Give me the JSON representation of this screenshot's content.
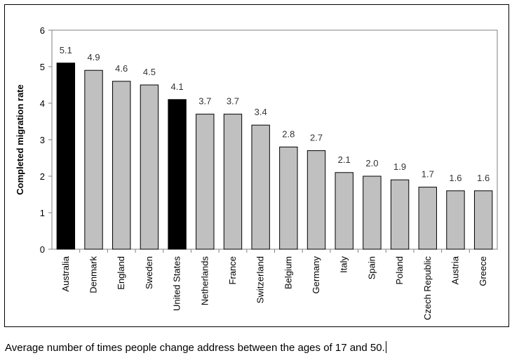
{
  "chart_data": {
    "type": "bar",
    "categories": [
      "Australia",
      "Denmark",
      "England",
      "Sweden",
      "United States",
      "Netherlands",
      "France",
      "Switzerland",
      "Belgium",
      "Germany",
      "Italy",
      "Spain",
      "Poland",
      "Czech Republic",
      "Austria",
      "Greece"
    ],
    "values": [
      5.1,
      4.9,
      4.6,
      4.5,
      4.1,
      3.7,
      3.7,
      3.4,
      2.8,
      2.7,
      2.1,
      2.0,
      1.9,
      1.7,
      1.6,
      1.6
    ],
    "value_labels": [
      "5.1",
      "4.9",
      "4.6",
      "4.5",
      "4.1",
      "3.7",
      "3.7",
      "3.4",
      "2.8",
      "2.7",
      "2.1",
      "2.0",
      "1.9",
      "1.7",
      "1.6",
      "1.6"
    ],
    "highlighted": [
      "Australia",
      "United States"
    ],
    "title": "",
    "xlabel": "",
    "ylabel": "Completed migration rate",
    "ylim": [
      0,
      6
    ],
    "yticks": [
      0,
      1,
      2,
      3,
      4,
      5,
      6
    ],
    "grid": false,
    "colors": {
      "bar": "#c0c0c0",
      "highlight": "#000000",
      "edge": "#000000",
      "axis": "#808080"
    }
  },
  "caption": "Average number of times people change address between the ages of 17 and 50."
}
